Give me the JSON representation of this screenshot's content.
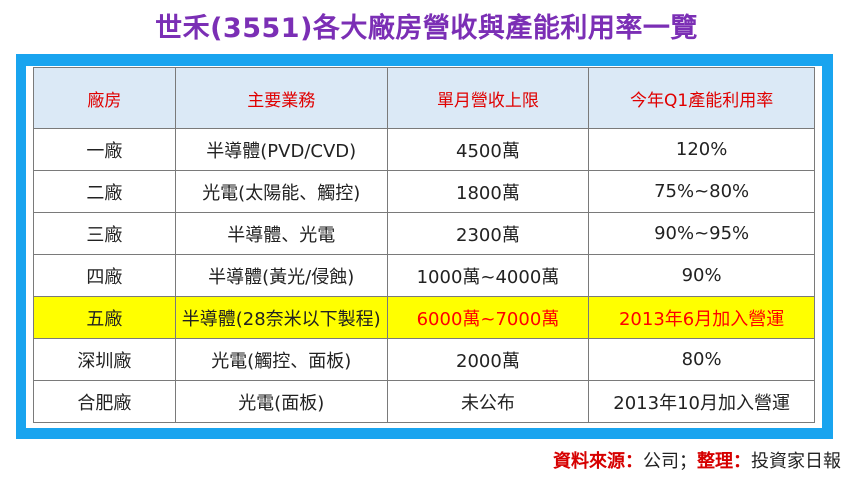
{
  "title": "世禾(3551)各大廠房營收與產能利用率一覽",
  "table": {
    "headers": [
      "廠房",
      "主要業務",
      "單月營收上限",
      "今年Q1產能利用率"
    ],
    "rows": [
      [
        "一廠",
        "半導體(PVD/CVD)",
        "4500萬",
        "120%"
      ],
      [
        "二廠",
        "光電(太陽能、觸控)",
        "1800萬",
        "75%~80%"
      ],
      [
        "三廠",
        "半導體、光電",
        "2300萬",
        "90%~95%"
      ],
      [
        "四廠",
        "半導體(黃光/侵蝕)",
        "1000萬~4000萬",
        "90%"
      ],
      [
        "五廠",
        "半導體(28奈米以下製程)",
        "6000萬~7000萬",
        "2013年6月加入營運"
      ],
      [
        "深圳廠",
        "光電(觸控、面板)",
        "2000萬",
        "80%"
      ],
      [
        "合肥廠",
        "光電(面板)",
        "未公布",
        "2013年10月加入營運"
      ]
    ]
  },
  "source": {
    "label1": "資料來源：",
    "value1": "公司；",
    "label2": "整理：",
    "value2": "投資家日報"
  },
  "colors": {
    "title": "#7b2fb5",
    "frame": "#19a4ef",
    "header_bg": "#dbe9f6",
    "header_text": "#e00000",
    "highlight_bg": "#ffff00",
    "highlight_text": "#ff0000"
  }
}
